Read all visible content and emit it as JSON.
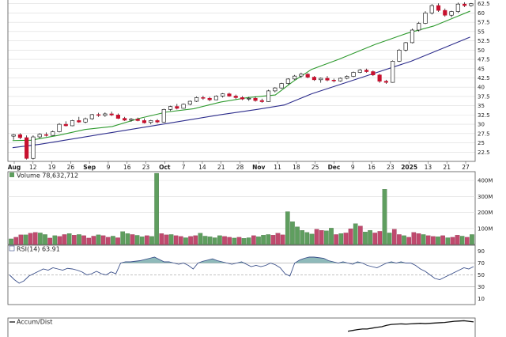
{
  "chart_data": [
    {
      "type": "candlestick",
      "panel": "price",
      "x_labels": [
        "Aug",
        "12",
        "19",
        "26",
        "Sep",
        "9",
        "16",
        "23",
        "Oct",
        "7",
        "14",
        "21",
        "28",
        "Nov",
        "11",
        "18",
        "25",
        "Dec",
        "9",
        "16",
        "23",
        "2025",
        "13",
        "21",
        "27"
      ],
      "x_label_bold": [
        "Aug",
        "Sep",
        "Oct",
        "Nov",
        "Dec",
        "2025"
      ],
      "y_ticks": [
        22.5,
        25.0,
        27.5,
        30.0,
        32.5,
        35.0,
        37.5,
        40.0,
        42.5,
        45.0,
        47.5,
        50.0,
        52.5,
        55.0,
        57.5,
        60.0,
        62.5
      ],
      "ylim": [
        20.0,
        63.5
      ],
      "candles": [
        [
          26.8,
          27.4,
          25.8,
          27.2
        ],
        [
          27.2,
          27.6,
          26.0,
          26.4
        ],
        [
          26.4,
          27.0,
          20.5,
          20.8
        ],
        [
          20.8,
          27.0,
          20.5,
          26.6
        ],
        [
          26.6,
          27.6,
          26.2,
          27.3
        ],
        [
          27.2,
          27.8,
          26.7,
          27.0
        ],
        [
          27.0,
          28.3,
          26.9,
          28.0
        ],
        [
          28.0,
          30.3,
          27.8,
          30.0
        ],
        [
          30.0,
          30.8,
          29.4,
          29.6
        ],
        [
          29.6,
          31.2,
          29.5,
          31.0
        ],
        [
          31.0,
          32.0,
          30.4,
          30.6
        ],
        [
          30.6,
          31.8,
          30.3,
          31.5
        ],
        [
          31.5,
          32.8,
          31.2,
          32.6
        ],
        [
          32.6,
          33.1,
          32.0,
          32.4
        ],
        [
          32.4,
          33.2,
          32.0,
          32.8
        ],
        [
          32.8,
          33.4,
          32.2,
          32.5
        ],
        [
          32.5,
          32.9,
          31.4,
          31.6
        ],
        [
          31.6,
          32.0,
          30.9,
          31.1
        ],
        [
          31.1,
          31.7,
          30.7,
          31.4
        ],
        [
          31.4,
          31.8,
          30.8,
          31.0
        ],
        [
          31.0,
          31.6,
          30.2,
          30.4
        ],
        [
          30.5,
          31.2,
          30.0,
          31.0
        ],
        [
          31.0,
          31.4,
          30.3,
          30.6
        ],
        [
          30.6,
          34.2,
          30.5,
          34.0
        ],
        [
          34.0,
          35.0,
          33.6,
          34.8
        ],
        [
          34.8,
          35.5,
          34.0,
          34.3
        ],
        [
          34.3,
          35.6,
          34.2,
          35.4
        ],
        [
          35.4,
          36.4,
          35.1,
          36.2
        ],
        [
          36.2,
          37.5,
          36.0,
          37.2
        ],
        [
          37.2,
          37.7,
          36.6,
          37.0
        ],
        [
          37.0,
          37.4,
          36.2,
          36.6
        ],
        [
          36.6,
          37.8,
          36.5,
          37.6
        ],
        [
          37.6,
          38.4,
          37.2,
          38.2
        ],
        [
          38.2,
          38.5,
          37.4,
          37.6
        ],
        [
          37.6,
          38.0,
          36.8,
          37.2
        ],
        [
          37.2,
          37.6,
          36.5,
          36.8
        ],
        [
          36.8,
          37.4,
          36.3,
          37.0
        ],
        [
          37.0,
          37.5,
          36.1,
          36.4
        ],
        [
          36.4,
          36.9,
          35.8,
          36.1
        ],
        [
          36.1,
          39.3,
          36.0,
          39.0
        ],
        [
          39.0,
          40.0,
          38.6,
          39.8
        ],
        [
          39.8,
          41.2,
          39.6,
          41.0
        ],
        [
          41.0,
          42.4,
          40.7,
          42.2
        ],
        [
          42.2,
          43.3,
          42.0,
          43.0
        ],
        [
          43.0,
          43.9,
          42.5,
          43.5
        ],
        [
          43.5,
          43.8,
          42.4,
          42.7
        ],
        [
          42.7,
          43.0,
          41.7,
          42.0
        ],
        [
          42.0,
          42.6,
          41.2,
          42.4
        ],
        [
          42.4,
          43.0,
          41.6,
          41.9
        ],
        [
          41.9,
          42.3,
          41.3,
          41.7
        ],
        [
          41.7,
          42.6,
          41.5,
          42.4
        ],
        [
          42.4,
          43.2,
          42.1,
          42.9
        ],
        [
          42.9,
          44.2,
          42.7,
          44.0
        ],
        [
          44.0,
          44.9,
          43.8,
          44.6
        ],
        [
          44.6,
          45.0,
          43.9,
          44.2
        ],
        [
          44.2,
          44.5,
          43.0,
          43.3
        ],
        [
          43.3,
          43.6,
          41.2,
          41.6
        ],
        [
          41.6,
          42.0,
          40.9,
          41.3
        ],
        [
          41.3,
          47.2,
          41.2,
          47.0
        ],
        [
          47.0,
          50.3,
          46.8,
          50.0
        ],
        [
          50.0,
          52.2,
          49.6,
          52.0
        ],
        [
          52.0,
          55.8,
          51.8,
          55.4
        ],
        [
          55.4,
          57.6,
          55.0,
          57.2
        ],
        [
          57.2,
          60.5,
          57.0,
          60.0
        ],
        [
          60.0,
          62.4,
          59.6,
          62.0
        ],
        [
          62.0,
          62.6,
          60.3,
          60.7
        ],
        [
          60.7,
          61.2,
          59.0,
          59.4
        ],
        [
          59.4,
          60.6,
          58.8,
          60.4
        ],
        [
          60.4,
          62.8,
          60.0,
          62.4
        ],
        [
          62.4,
          62.9,
          61.6,
          62.0
        ],
        [
          62.0,
          62.7,
          61.7,
          62.5
        ]
      ],
      "overlays": [
        {
          "name": "short-term moving average",
          "color": "#2e9a2e",
          "values": [
            [
              0,
              25.6
            ],
            [
              4,
              25.7
            ],
            [
              10,
              27.0
            ],
            [
              16,
              28.6
            ],
            [
              22,
              29.4
            ],
            [
              28,
              31.6
            ],
            [
              34,
              33.3
            ],
            [
              40,
              34.2
            ],
            [
              46,
              36.0
            ],
            [
              52,
              37.2
            ],
            [
              58,
              37.9
            ],
            [
              62,
              41.6
            ],
            [
              66,
              44.8
            ],
            [
              72,
              47.5
            ],
            [
              80,
              51.5
            ],
            [
              87,
              54.5
            ],
            [
              93,
              56.5
            ],
            [
              98,
              59.0
            ],
            [
              101,
              60.5
            ]
          ]
        },
        {
          "name": "long-term moving average",
          "color": "#2d2d8c",
          "values": [
            [
              0,
              23.7
            ],
            [
              6,
              24.6
            ],
            [
              14,
              26.2
            ],
            [
              22,
              27.8
            ],
            [
              30,
              29.4
            ],
            [
              38,
              31.0
            ],
            [
              46,
              32.6
            ],
            [
              54,
              34.0
            ],
            [
              60,
              35.2
            ],
            [
              66,
              38.2
            ],
            [
              72,
              40.6
            ],
            [
              80,
              43.8
            ],
            [
              88,
              47.0
            ],
            [
              95,
              50.5
            ],
            [
              101,
              53.5
            ]
          ]
        }
      ]
    },
    {
      "type": "bar",
      "panel": "volume",
      "legend": "Volume 78,632,712",
      "y_ticks": [
        "100M",
        "200M",
        "300M",
        "400M"
      ],
      "y_tick_values": [
        100,
        200,
        300,
        400
      ],
      "ylim": [
        0,
        455
      ],
      "values": [
        35,
        45,
        60,
        60,
        70,
        75,
        72,
        62,
        40,
        55,
        50,
        62,
        68,
        58,
        62,
        55,
        40,
        52,
        60,
        55,
        45,
        52,
        42,
        80,
        68,
        62,
        57,
        48,
        55,
        50,
        445,
        68,
        60,
        62,
        55,
        50,
        42,
        50,
        55,
        70,
        52,
        48,
        42,
        55,
        50,
        45,
        40,
        45,
        38,
        42,
        55,
        48,
        58,
        62,
        58,
        70,
        60,
        205,
        142,
        110,
        88,
        75,
        65,
        95,
        88,
        85,
        102,
        62,
        68,
        72,
        98,
        130,
        115,
        78,
        88,
        72,
        82,
        345,
        72,
        95,
        62,
        55,
        45,
        75,
        68,
        62,
        55,
        50,
        48,
        55,
        42,
        45,
        58,
        52,
        45,
        62
      ],
      "up": [
        true,
        false,
        false,
        true,
        false,
        false,
        true,
        true,
        false,
        true,
        false,
        false,
        true,
        false,
        true,
        false,
        false,
        false,
        true,
        false,
        false,
        true,
        false,
        true,
        true,
        false,
        true,
        true,
        false,
        true,
        true,
        false,
        false,
        true,
        false,
        false,
        true,
        false,
        false,
        true,
        true,
        true,
        true,
        true,
        false,
        false,
        true,
        false,
        true,
        true,
        false,
        true,
        true,
        true,
        false,
        false,
        false,
        true,
        true,
        true,
        true,
        true,
        true,
        false,
        false,
        true,
        true,
        false,
        true,
        false,
        false,
        true,
        false,
        true,
        true,
        false,
        false,
        true,
        true,
        false,
        false,
        true,
        false,
        false,
        false,
        true,
        false,
        false,
        true,
        false,
        true,
        false,
        false,
        true,
        false,
        true
      ]
    },
    {
      "type": "area",
      "panel": "rsi",
      "legend": "RSI(14) 63.91",
      "y_ticks": [
        10,
        30,
        50,
        70,
        90
      ],
      "ylim": [
        0,
        100
      ],
      "overbought": 70,
      "oversold": 30,
      "midline": 50,
      "values": [
        50,
        42,
        36,
        40,
        48,
        52,
        56,
        60,
        58,
        62,
        60,
        58,
        61,
        60,
        58,
        55,
        50,
        52,
        56,
        52,
        50,
        55,
        52,
        70,
        72,
        72,
        73,
        74,
        76,
        78,
        80,
        76,
        72,
        72,
        70,
        68,
        70,
        66,
        60,
        70,
        73,
        75,
        77,
        74,
        72,
        70,
        68,
        70,
        72,
        68,
        64,
        66,
        64,
        66,
        70,
        67,
        62,
        52,
        48,
        70,
        75,
        78,
        80,
        80,
        79,
        78,
        74,
        72,
        70,
        72,
        70,
        68,
        72,
        70,
        66,
        64,
        62,
        66,
        70,
        72,
        70,
        72,
        70,
        70,
        66,
        60,
        56,
        50,
        44,
        42,
        46,
        50,
        54,
        58,
        62,
        60,
        64
      ]
    },
    {
      "type": "line",
      "panel": "accum-dist",
      "legend": "Accum/Dist",
      "values": [
        0,
        0,
        0,
        0,
        0,
        0,
        0,
        0,
        0,
        0,
        0,
        0,
        0,
        0,
        0,
        0,
        0,
        0,
        0,
        0,
        0,
        0,
        0,
        0,
        0,
        0,
        0,
        0,
        0,
        0,
        0,
        0,
        0,
        0,
        0,
        0,
        0,
        0,
        0,
        0,
        0,
        0,
        0,
        0,
        0,
        0,
        0,
        0,
        0,
        0,
        0,
        0,
        0,
        0,
        0,
        0,
        0,
        0,
        0,
        0,
        0,
        0,
        0,
        0,
        0,
        0,
        0,
        0,
        0,
        0,
        18,
        24,
        30,
        34,
        34,
        40,
        46,
        50,
        60,
        66,
        68,
        70,
        68,
        70,
        72,
        74,
        72,
        74,
        76,
        78,
        80,
        84,
        88,
        90,
        92,
        88,
        84
      ]
    }
  ]
}
